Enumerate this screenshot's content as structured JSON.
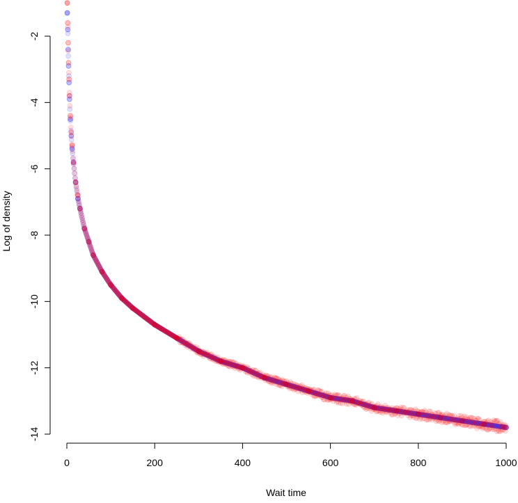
{
  "chart_data": {
    "type": "scatter",
    "title": "",
    "xlabel": "Wait time",
    "ylabel": "Log of density",
    "xlim": [
      0,
      1000
    ],
    "ylim": [
      -14,
      -1.0
    ],
    "xticks": [
      0,
      200,
      400,
      600,
      800,
      1000
    ],
    "yticks": [
      -2,
      -4,
      -6,
      -8,
      -10,
      -12,
      -14
    ],
    "grid": false,
    "legend": "none",
    "series": [
      {
        "color": "#0000ff",
        "opacity": 0.25,
        "note_model": "y = -1 - 0.9*ln(x) - 0.0061*x",
        "x": [
          1,
          2,
          3,
          4,
          5,
          6,
          8,
          10,
          12,
          15,
          20,
          25,
          30,
          40,
          50,
          60,
          80,
          100,
          125,
          150,
          200,
          250,
          300,
          350,
          400,
          450,
          500,
          550,
          600,
          650,
          700,
          750,
          800,
          850,
          900,
          950,
          1000
        ],
        "y": [
          -1.3,
          -1.8,
          -2.4,
          -2.9,
          -3.4,
          -3.9,
          -4.5,
          -5.0,
          -5.4,
          -5.8,
          -6.4,
          -6.9,
          -7.2,
          -7.8,
          -8.2,
          -8.6,
          -9.1,
          -9.5,
          -9.9,
          -10.2,
          -10.7,
          -11.1,
          -11.5,
          -11.8,
          -12.0,
          -12.3,
          -12.5,
          -12.7,
          -12.9,
          -13.0,
          -13.2,
          -13.3,
          -13.4,
          -13.5,
          -13.6,
          -13.7,
          -13.8
        ]
      },
      {
        "color": "#ff0000",
        "opacity": 0.25,
        "x": [
          1,
          2,
          3,
          4,
          5,
          6,
          8,
          10,
          12,
          15,
          20,
          25,
          30,
          40,
          50,
          60,
          80,
          100,
          125,
          150,
          200,
          250,
          300,
          350,
          400,
          450,
          500,
          550,
          600,
          650,
          700,
          750,
          800,
          850,
          900,
          950,
          1000
        ],
        "y": [
          -1.0,
          -1.6,
          -2.2,
          -2.8,
          -3.3,
          -3.8,
          -4.4,
          -4.9,
          -5.3,
          -5.8,
          -6.4,
          -6.8,
          -7.2,
          -7.8,
          -8.2,
          -8.6,
          -9.1,
          -9.5,
          -9.9,
          -10.2,
          -10.7,
          -11.1,
          -11.5,
          -11.8,
          -12.0,
          -12.3,
          -12.5,
          -12.7,
          -12.9,
          -13.0,
          -13.2,
          -13.3,
          -13.4,
          -13.5,
          -13.6,
          -13.7,
          -13.8
        ]
      }
    ]
  }
}
